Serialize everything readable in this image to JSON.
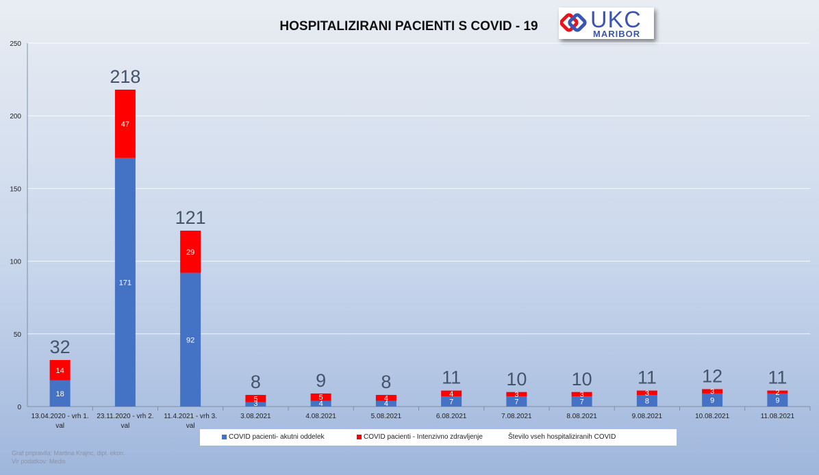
{
  "chart_data": {
    "type": "bar",
    "stacked": true,
    "title": "HOSPITALIZIRANI PACIENTI S COVID - 19",
    "categories": [
      [
        "13.04.2020 - vrh 1.",
        "val"
      ],
      [
        "23.11.2020 - vrh 2.",
        "val"
      ],
      [
        "11.4.2021 -  vrh 3.",
        "val"
      ],
      [
        "3.08.2021"
      ],
      [
        "4.08.2021"
      ],
      [
        "5.08.2021"
      ],
      [
        "6.08.2021"
      ],
      [
        "7.08.2021"
      ],
      [
        "8.08.2021"
      ],
      [
        "9.08.2021"
      ],
      [
        "10.08.2021"
      ],
      [
        "11.08.2021"
      ]
    ],
    "series": [
      {
        "name": "COVID pacienti- akutni oddelek",
        "color": "#4472c4",
        "values": [
          18,
          171,
          92,
          3,
          4,
          4,
          7,
          7,
          7,
          8,
          9,
          9
        ]
      },
      {
        "name": "COVID pacienti - Intenzivno zdravljenje",
        "color": "#ff0000",
        "values": [
          14,
          47,
          29,
          5,
          5,
          4,
          4,
          3,
          3,
          3,
          3,
          2
        ]
      }
    ],
    "totals": {
      "name": "Število vseh hospitaliziranih COVID",
      "values": [
        32,
        218,
        121,
        8,
        9,
        8,
        11,
        10,
        10,
        11,
        12,
        11
      ]
    },
    "ylim": [
      0,
      250
    ],
    "yticks": [
      0,
      50,
      100,
      150,
      200,
      250
    ],
    "grid": true,
    "legend": "bottom"
  },
  "logo": {
    "main": "UKC",
    "sub": "MARIBOR"
  },
  "footer": {
    "line1": "Graf pripravila: Martina Krajnc, dipl. ekon.",
    "line2": "Vir podatkov: Medis"
  }
}
